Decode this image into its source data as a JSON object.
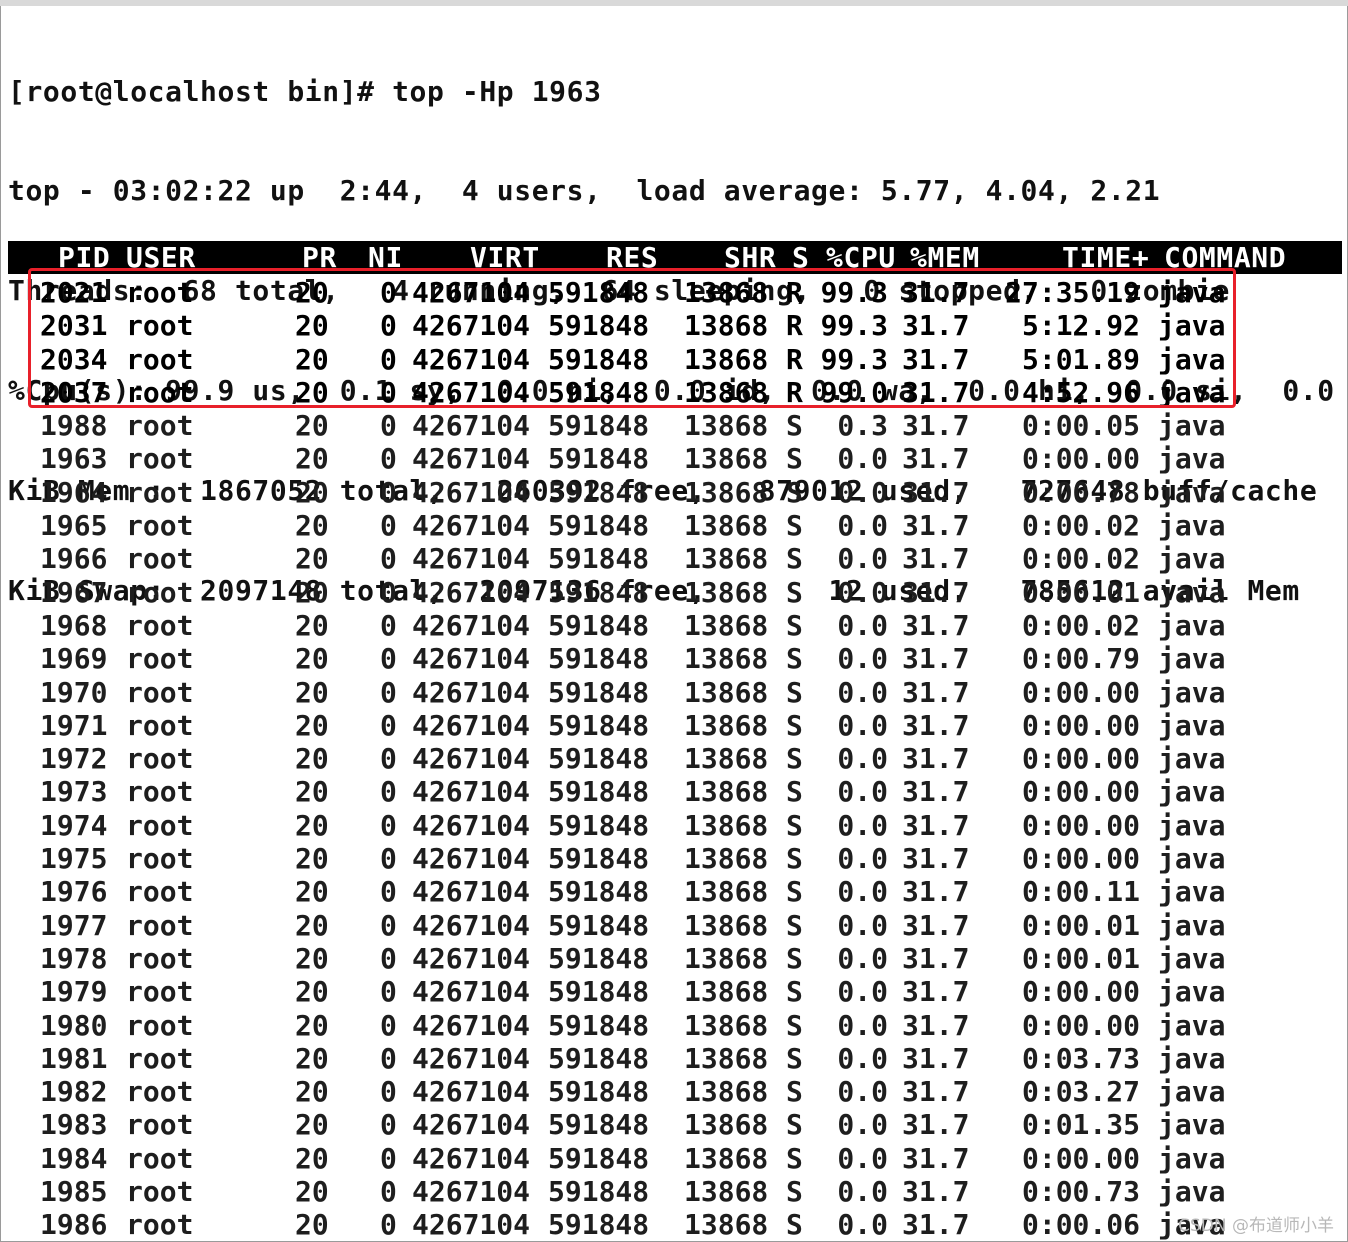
{
  "terminal": {
    "lines": [
      "[root@localhost bin]# top -Hp 1963",
      "top - 03:02:22 up  2:44,  4 users,  load average: 5.77, 4.04, 2.21",
      "Threads:  68 total,   4 running,  64 sleeping,   0 stopped,   0 zombie",
      "%Cpu(s): 99.9 us,  0.1 sy,  0.0 ni,  0.0 id,  0.0 wa,  0.0 hi,  0.0 si,  0.0 st",
      "KiB Mem :  1867052 total,   260392 free,   879012 used,   727648 buff/cache",
      "KiB Swap:  2097148 total,  2097136 free,       12 used.   785612 avail Mem"
    ]
  },
  "table": {
    "headers": {
      "pid": "PID",
      "user": "USER",
      "pr": "PR",
      "ni": "NI",
      "virt": "VIRT",
      "res": "RES",
      "shr": "SHR",
      "s": "S",
      "cpu": "%CPU",
      "mem": "%MEM",
      "time": "TIME+",
      "cmd": "COMMAND"
    },
    "rows": [
      {
        "pid": "2021",
        "user": "root",
        "pr": "20",
        "ni": "0",
        "virt": "4267104",
        "res": "591848",
        "shr": "13868",
        "s": "R",
        "cpu": "99.3",
        "mem": "31.7",
        "time": "27:35.19",
        "cmd": "java"
      },
      {
        "pid": "2031",
        "user": "root",
        "pr": "20",
        "ni": "0",
        "virt": "4267104",
        "res": "591848",
        "shr": "13868",
        "s": "R",
        "cpu": "99.3",
        "mem": "31.7",
        "time": "5:12.92",
        "cmd": "java"
      },
      {
        "pid": "2034",
        "user": "root",
        "pr": "20",
        "ni": "0",
        "virt": "4267104",
        "res": "591848",
        "shr": "13868",
        "s": "R",
        "cpu": "99.3",
        "mem": "31.7",
        "time": "5:01.89",
        "cmd": "java"
      },
      {
        "pid": "2037",
        "user": "root",
        "pr": "20",
        "ni": "0",
        "virt": "4267104",
        "res": "591848",
        "shr": "13868",
        "s": "R",
        "cpu": "99.0",
        "mem": "31.7",
        "time": "4:52.96",
        "cmd": "java"
      },
      {
        "pid": "1988",
        "user": "root",
        "pr": "20",
        "ni": "0",
        "virt": "4267104",
        "res": "591848",
        "shr": "13868",
        "s": "S",
        "cpu": "0.3",
        "mem": "31.7",
        "time": "0:00.05",
        "cmd": "java"
      },
      {
        "pid": "1963",
        "user": "root",
        "pr": "20",
        "ni": "0",
        "virt": "4267104",
        "res": "591848",
        "shr": "13868",
        "s": "S",
        "cpu": "0.0",
        "mem": "31.7",
        "time": "0:00.00",
        "cmd": "java"
      },
      {
        "pid": "1964",
        "user": "root",
        "pr": "20",
        "ni": "0",
        "virt": "4267104",
        "res": "591848",
        "shr": "13868",
        "s": "S",
        "cpu": "0.0",
        "mem": "31.7",
        "time": "0:00.78",
        "cmd": "java"
      },
      {
        "pid": "1965",
        "user": "root",
        "pr": "20",
        "ni": "0",
        "virt": "4267104",
        "res": "591848",
        "shr": "13868",
        "s": "S",
        "cpu": "0.0",
        "mem": "31.7",
        "time": "0:00.02",
        "cmd": "java"
      },
      {
        "pid": "1966",
        "user": "root",
        "pr": "20",
        "ni": "0",
        "virt": "4267104",
        "res": "591848",
        "shr": "13868",
        "s": "S",
        "cpu": "0.0",
        "mem": "31.7",
        "time": "0:00.02",
        "cmd": "java"
      },
      {
        "pid": "1967",
        "user": "root",
        "pr": "20",
        "ni": "0",
        "virt": "4267104",
        "res": "591848",
        "shr": "13868",
        "s": "S",
        "cpu": "0.0",
        "mem": "31.7",
        "time": "0:00.01",
        "cmd": "java"
      },
      {
        "pid": "1968",
        "user": "root",
        "pr": "20",
        "ni": "0",
        "virt": "4267104",
        "res": "591848",
        "shr": "13868",
        "s": "S",
        "cpu": "0.0",
        "mem": "31.7",
        "time": "0:00.02",
        "cmd": "java"
      },
      {
        "pid": "1969",
        "user": "root",
        "pr": "20",
        "ni": "0",
        "virt": "4267104",
        "res": "591848",
        "shr": "13868",
        "s": "S",
        "cpu": "0.0",
        "mem": "31.7",
        "time": "0:00.79",
        "cmd": "java"
      },
      {
        "pid": "1970",
        "user": "root",
        "pr": "20",
        "ni": "0",
        "virt": "4267104",
        "res": "591848",
        "shr": "13868",
        "s": "S",
        "cpu": "0.0",
        "mem": "31.7",
        "time": "0:00.00",
        "cmd": "java"
      },
      {
        "pid": "1971",
        "user": "root",
        "pr": "20",
        "ni": "0",
        "virt": "4267104",
        "res": "591848",
        "shr": "13868",
        "s": "S",
        "cpu": "0.0",
        "mem": "31.7",
        "time": "0:00.00",
        "cmd": "java"
      },
      {
        "pid": "1972",
        "user": "root",
        "pr": "20",
        "ni": "0",
        "virt": "4267104",
        "res": "591848",
        "shr": "13868",
        "s": "S",
        "cpu": "0.0",
        "mem": "31.7",
        "time": "0:00.00",
        "cmd": "java"
      },
      {
        "pid": "1973",
        "user": "root",
        "pr": "20",
        "ni": "0",
        "virt": "4267104",
        "res": "591848",
        "shr": "13868",
        "s": "S",
        "cpu": "0.0",
        "mem": "31.7",
        "time": "0:00.00",
        "cmd": "java"
      },
      {
        "pid": "1974",
        "user": "root",
        "pr": "20",
        "ni": "0",
        "virt": "4267104",
        "res": "591848",
        "shr": "13868",
        "s": "S",
        "cpu": "0.0",
        "mem": "31.7",
        "time": "0:00.00",
        "cmd": "java"
      },
      {
        "pid": "1975",
        "user": "root",
        "pr": "20",
        "ni": "0",
        "virt": "4267104",
        "res": "591848",
        "shr": "13868",
        "s": "S",
        "cpu": "0.0",
        "mem": "31.7",
        "time": "0:00.00",
        "cmd": "java"
      },
      {
        "pid": "1976",
        "user": "root",
        "pr": "20",
        "ni": "0",
        "virt": "4267104",
        "res": "591848",
        "shr": "13868",
        "s": "S",
        "cpu": "0.0",
        "mem": "31.7",
        "time": "0:00.11",
        "cmd": "java"
      },
      {
        "pid": "1977",
        "user": "root",
        "pr": "20",
        "ni": "0",
        "virt": "4267104",
        "res": "591848",
        "shr": "13868",
        "s": "S",
        "cpu": "0.0",
        "mem": "31.7",
        "time": "0:00.01",
        "cmd": "java"
      },
      {
        "pid": "1978",
        "user": "root",
        "pr": "20",
        "ni": "0",
        "virt": "4267104",
        "res": "591848",
        "shr": "13868",
        "s": "S",
        "cpu": "0.0",
        "mem": "31.7",
        "time": "0:00.01",
        "cmd": "java"
      },
      {
        "pid": "1979",
        "user": "root",
        "pr": "20",
        "ni": "0",
        "virt": "4267104",
        "res": "591848",
        "shr": "13868",
        "s": "S",
        "cpu": "0.0",
        "mem": "31.7",
        "time": "0:00.00",
        "cmd": "java"
      },
      {
        "pid": "1980",
        "user": "root",
        "pr": "20",
        "ni": "0",
        "virt": "4267104",
        "res": "591848",
        "shr": "13868",
        "s": "S",
        "cpu": "0.0",
        "mem": "31.7",
        "time": "0:00.00",
        "cmd": "java"
      },
      {
        "pid": "1981",
        "user": "root",
        "pr": "20",
        "ni": "0",
        "virt": "4267104",
        "res": "591848",
        "shr": "13868",
        "s": "S",
        "cpu": "0.0",
        "mem": "31.7",
        "time": "0:03.73",
        "cmd": "java"
      },
      {
        "pid": "1982",
        "user": "root",
        "pr": "20",
        "ni": "0",
        "virt": "4267104",
        "res": "591848",
        "shr": "13868",
        "s": "S",
        "cpu": "0.0",
        "mem": "31.7",
        "time": "0:03.27",
        "cmd": "java"
      },
      {
        "pid": "1983",
        "user": "root",
        "pr": "20",
        "ni": "0",
        "virt": "4267104",
        "res": "591848",
        "shr": "13868",
        "s": "S",
        "cpu": "0.0",
        "mem": "31.7",
        "time": "0:01.35",
        "cmd": "java"
      },
      {
        "pid": "1984",
        "user": "root",
        "pr": "20",
        "ni": "0",
        "virt": "4267104",
        "res": "591848",
        "shr": "13868",
        "s": "S",
        "cpu": "0.0",
        "mem": "31.7",
        "time": "0:00.00",
        "cmd": "java"
      },
      {
        "pid": "1985",
        "user": "root",
        "pr": "20",
        "ni": "0",
        "virt": "4267104",
        "res": "591848",
        "shr": "13868",
        "s": "S",
        "cpu": "0.0",
        "mem": "31.7",
        "time": "0:00.73",
        "cmd": "java"
      },
      {
        "pid": "1986",
        "user": "root",
        "pr": "20",
        "ni": "0",
        "virt": "4267104",
        "res": "591848",
        "shr": "13868",
        "s": "S",
        "cpu": "0.0",
        "mem": "31.7",
        "time": "0:00.06",
        "cmd": "java"
      }
    ]
  },
  "highlight": {
    "color": "#e8202a"
  },
  "watermark": {
    "text": "CSDN @布道师小羊"
  }
}
